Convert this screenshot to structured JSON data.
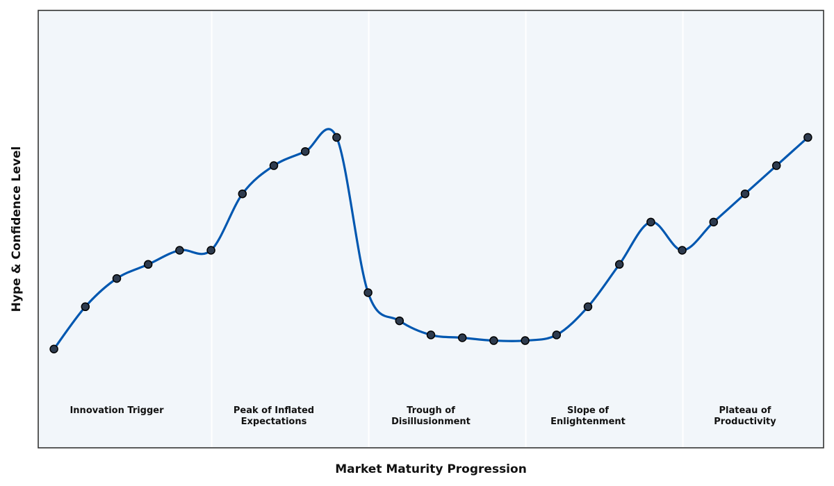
{
  "chart_data": {
    "type": "line",
    "title": "",
    "xlabel": "Market Maturity Progression",
    "ylabel": "Hype & Confidence Level",
    "grid": false,
    "x": [
      0,
      1,
      2,
      3,
      4,
      5,
      6,
      7,
      8,
      9,
      10,
      11,
      12,
      13,
      14,
      15,
      16,
      17,
      18,
      19,
      20,
      21,
      22,
      23,
      24
    ],
    "series": [
      {
        "name": "",
        "values": [
          30,
          45,
          55,
          60,
          65,
          65,
          85,
          95,
          100,
          105,
          50,
          40,
          35,
          34,
          33,
          33,
          35,
          45,
          60,
          75,
          65,
          75,
          85,
          95,
          105
        ]
      }
    ],
    "xlim": [
      -0.5,
      24.5
    ],
    "ylim": [
      -5,
      150
    ],
    "phases": [
      {
        "lines": [
          "Innovation Trigger"
        ],
        "center": 2,
        "end": 5
      },
      {
        "lines": [
          "Peak of Inflated",
          "Expectations"
        ],
        "center": 7,
        "end": 10
      },
      {
        "lines": [
          "Trough of",
          "Disillusionment"
        ],
        "center": 12,
        "end": 15
      },
      {
        "lines": [
          "Slope of",
          "Enlightenment"
        ],
        "center": 17,
        "end": 20
      },
      {
        "lines": [
          "Plateau of",
          "Productivity"
        ],
        "center": 22,
        "end": null
      }
    ],
    "colors": {
      "line": "#0057b0",
      "marker": "#2e3b4e",
      "marker_edge": "#000000",
      "plot_background": "#f2f6fa",
      "phase_divider": "#ffffff",
      "frame": "#333333"
    }
  }
}
